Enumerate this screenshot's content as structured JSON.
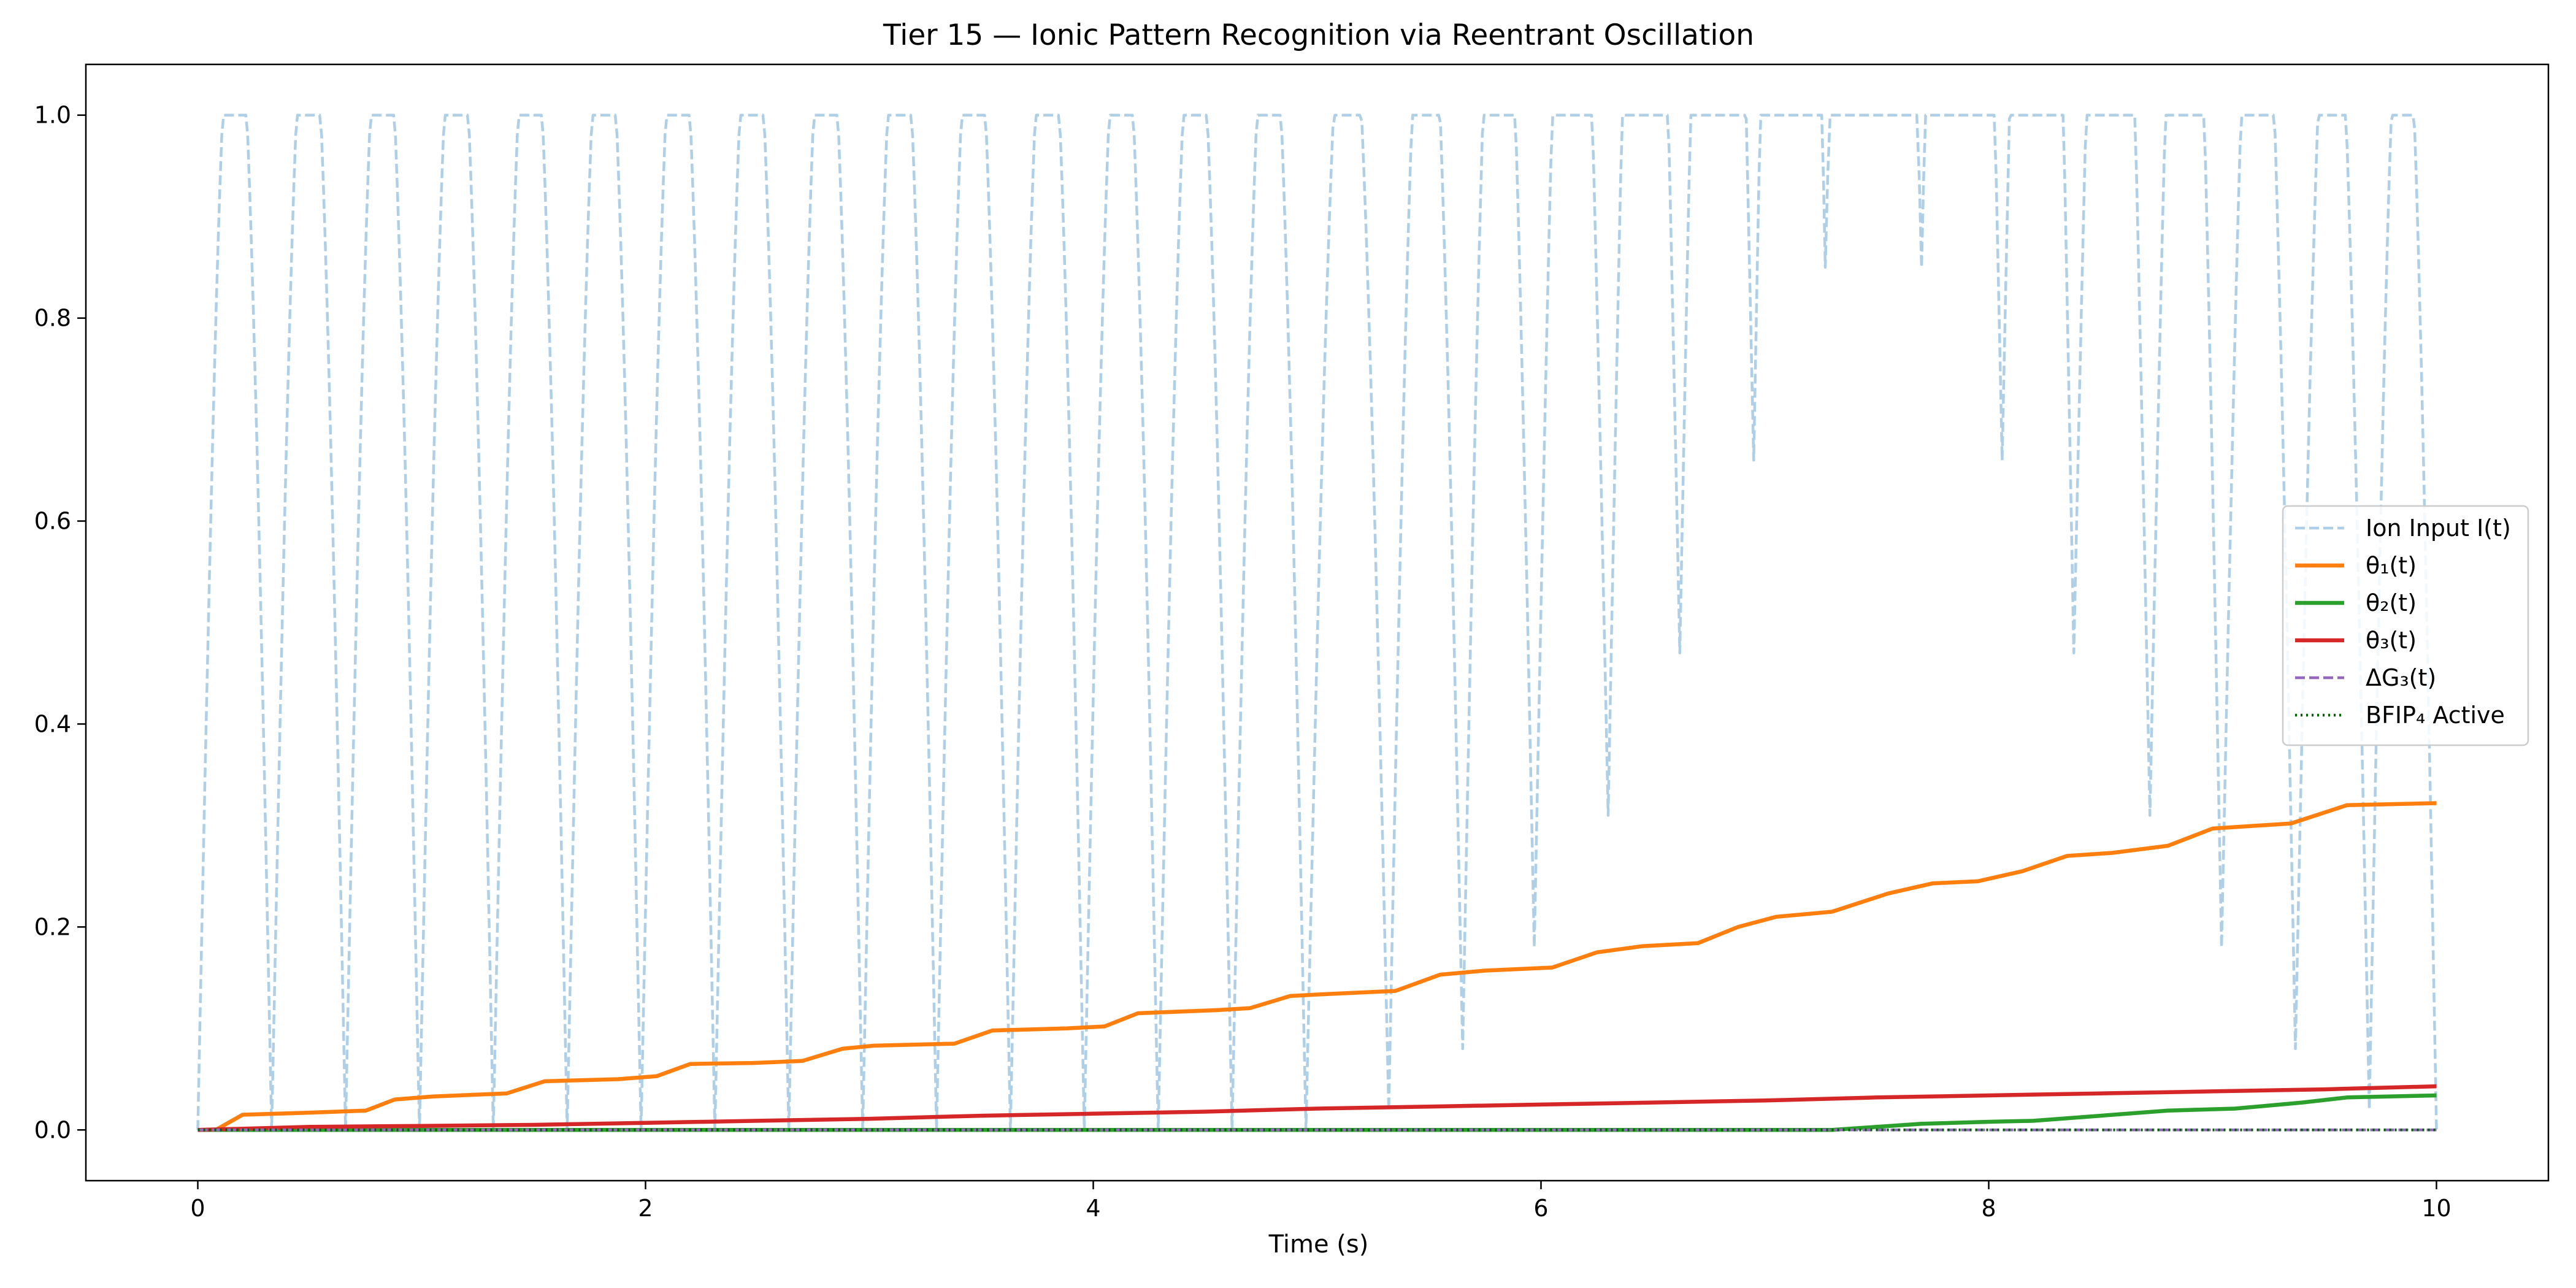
{
  "chart_data": {
    "type": "line",
    "title": "Tier 15 — Ionic Pattern Recognition via Reentrant Oscillation",
    "xlabel": "Time (s)",
    "ylabel": "",
    "xlim": [
      -0.5,
      10.5
    ],
    "ylim": [
      -0.05,
      1.05
    ],
    "xticks": [
      0,
      2,
      4,
      6,
      8,
      10
    ],
    "xtick_labels": [
      "0",
      "2",
      "4",
      "6",
      "8",
      "10"
    ],
    "yticks": [
      0.0,
      0.2,
      0.4,
      0.6,
      0.8,
      1.0
    ],
    "ytick_labels": [
      "0.0",
      "0.2",
      "0.4",
      "0.6",
      "0.8",
      "1.0"
    ],
    "grid": false,
    "legend_position": "center-right",
    "series": [
      {
        "name": "Ion Input I(t)",
        "color": "#aecfe6",
        "style": "dashed",
        "minima": [
          [
            0.0,
            0.0
          ],
          [
            0.33,
            0.0
          ],
          [
            0.66,
            0.0
          ],
          [
            0.99,
            0.0
          ],
          [
            1.32,
            0.0
          ],
          [
            1.65,
            0.0
          ],
          [
            1.98,
            0.0
          ],
          [
            2.31,
            0.0
          ],
          [
            2.64,
            0.0
          ],
          [
            2.97,
            0.0
          ],
          [
            3.3,
            0.0
          ],
          [
            3.63,
            0.0
          ],
          [
            3.96,
            0.0
          ],
          [
            4.29,
            0.0
          ],
          [
            4.62,
            0.0
          ],
          [
            4.95,
            0.0
          ],
          [
            5.32,
            0.02
          ],
          [
            5.65,
            0.08
          ],
          [
            5.97,
            0.18
          ],
          [
            6.3,
            0.31
          ],
          [
            6.62,
            0.47
          ],
          [
            6.95,
            0.66
          ],
          [
            7.27,
            0.85
          ],
          [
            7.7,
            0.85
          ],
          [
            8.06,
            0.66
          ],
          [
            8.38,
            0.47
          ],
          [
            8.72,
            0.31
          ],
          [
            9.04,
            0.18
          ],
          [
            9.37,
            0.08
          ],
          [
            9.7,
            0.02
          ]
        ],
        "end": [
          10.0,
          0.0
        ]
      },
      {
        "name": "θ₁(t)",
        "color": "#ff7f0e",
        "style": "solid",
        "x": [
          0,
          0.08,
          0.2,
          0.5,
          0.75,
          0.88,
          1.05,
          1.38,
          1.55,
          1.88,
          2.05,
          2.2,
          2.48,
          2.7,
          2.88,
          3.02,
          3.38,
          3.55,
          3.88,
          4.05,
          4.2,
          4.55,
          4.7,
          4.88,
          5.05,
          5.35,
          5.55,
          5.75,
          6.05,
          6.25,
          6.45,
          6.7,
          6.88,
          7.05,
          7.3,
          7.55,
          7.75,
          7.95,
          8.15,
          8.35,
          8.55,
          8.8,
          9.0,
          9.35,
          9.6,
          10.0
        ],
        "y": [
          0.0,
          0.0,
          0.015,
          0.017,
          0.019,
          0.03,
          0.033,
          0.036,
          0.048,
          0.05,
          0.053,
          0.065,
          0.066,
          0.068,
          0.08,
          0.083,
          0.085,
          0.098,
          0.1,
          0.102,
          0.115,
          0.118,
          0.12,
          0.132,
          0.134,
          0.137,
          0.153,
          0.157,
          0.16,
          0.175,
          0.181,
          0.184,
          0.2,
          0.21,
          0.215,
          0.233,
          0.243,
          0.245,
          0.255,
          0.27,
          0.273,
          0.28,
          0.297,
          0.302,
          0.32,
          0.322
        ]
      },
      {
        "name": "θ₂(t)",
        "color": "#2ca02c",
        "style": "solid",
        "x": [
          0,
          7.3,
          7.5,
          7.7,
          8.0,
          8.2,
          8.5,
          8.8,
          9.1,
          9.4,
          9.6,
          10.0
        ],
        "y": [
          0.0,
          0.0,
          0.003,
          0.006,
          0.008,
          0.009,
          0.014,
          0.019,
          0.021,
          0.027,
          0.032,
          0.034
        ]
      },
      {
        "name": "θ₃(t)",
        "color": "#d62728",
        "style": "solid",
        "x": [
          0,
          0.5,
          1.0,
          1.5,
          2.0,
          2.5,
          3.0,
          3.5,
          4.0,
          4.5,
          5.0,
          5.5,
          6.0,
          6.5,
          7.0,
          7.5,
          8.0,
          8.5,
          9.0,
          9.5,
          10.0
        ],
        "y": [
          0.0,
          0.003,
          0.004,
          0.005,
          0.007,
          0.009,
          0.011,
          0.014,
          0.016,
          0.018,
          0.021,
          0.023,
          0.025,
          0.027,
          0.029,
          0.032,
          0.034,
          0.036,
          0.038,
          0.04,
          0.043
        ]
      },
      {
        "name": "ΔG₃(t)",
        "color": "#9467bd",
        "style": "dashed",
        "x": [
          0,
          10
        ],
        "y": [
          0.0,
          0.0
        ]
      },
      {
        "name": "BFIP₄ Active",
        "color": "#006400",
        "style": "dotted",
        "x": [
          0,
          10
        ],
        "y": [
          0.0,
          0.0
        ]
      }
    ]
  }
}
